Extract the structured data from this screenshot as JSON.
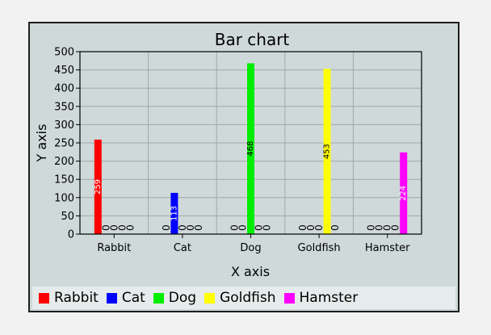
{
  "chart_data": {
    "type": "bar",
    "title": "Bar chart",
    "xlabel": "X axis",
    "ylabel": "Y axis",
    "ylim": [
      0,
      500
    ],
    "yticks": [
      0,
      50,
      100,
      150,
      200,
      250,
      300,
      350,
      400,
      450,
      500
    ],
    "grid": true,
    "legend_position": "bottom",
    "categories": [
      "Rabbit",
      "Cat",
      "Dog",
      "Goldfish",
      "Hamster"
    ],
    "series": [
      {
        "name": "Rabbit",
        "color": "#ff0000",
        "label_color": "#ffffff",
        "values": [
          259,
          0,
          0,
          0,
          0
        ]
      },
      {
        "name": "Cat",
        "color": "#0000ff",
        "label_color": "#ffffff",
        "values": [
          0,
          113,
          0,
          0,
          0
        ]
      },
      {
        "name": "Dog",
        "color": "#00ee00",
        "label_color": "#000000",
        "values": [
          0,
          0,
          468,
          0,
          0
        ]
      },
      {
        "name": "Goldfish",
        "color": "#ffff00",
        "label_color": "#000000",
        "values": [
          0,
          0,
          0,
          453,
          0
        ]
      },
      {
        "name": "Hamster",
        "color": "#ff00ff",
        "label_color": "#ffffff",
        "values": [
          0,
          0,
          0,
          0,
          224
        ]
      }
    ]
  }
}
